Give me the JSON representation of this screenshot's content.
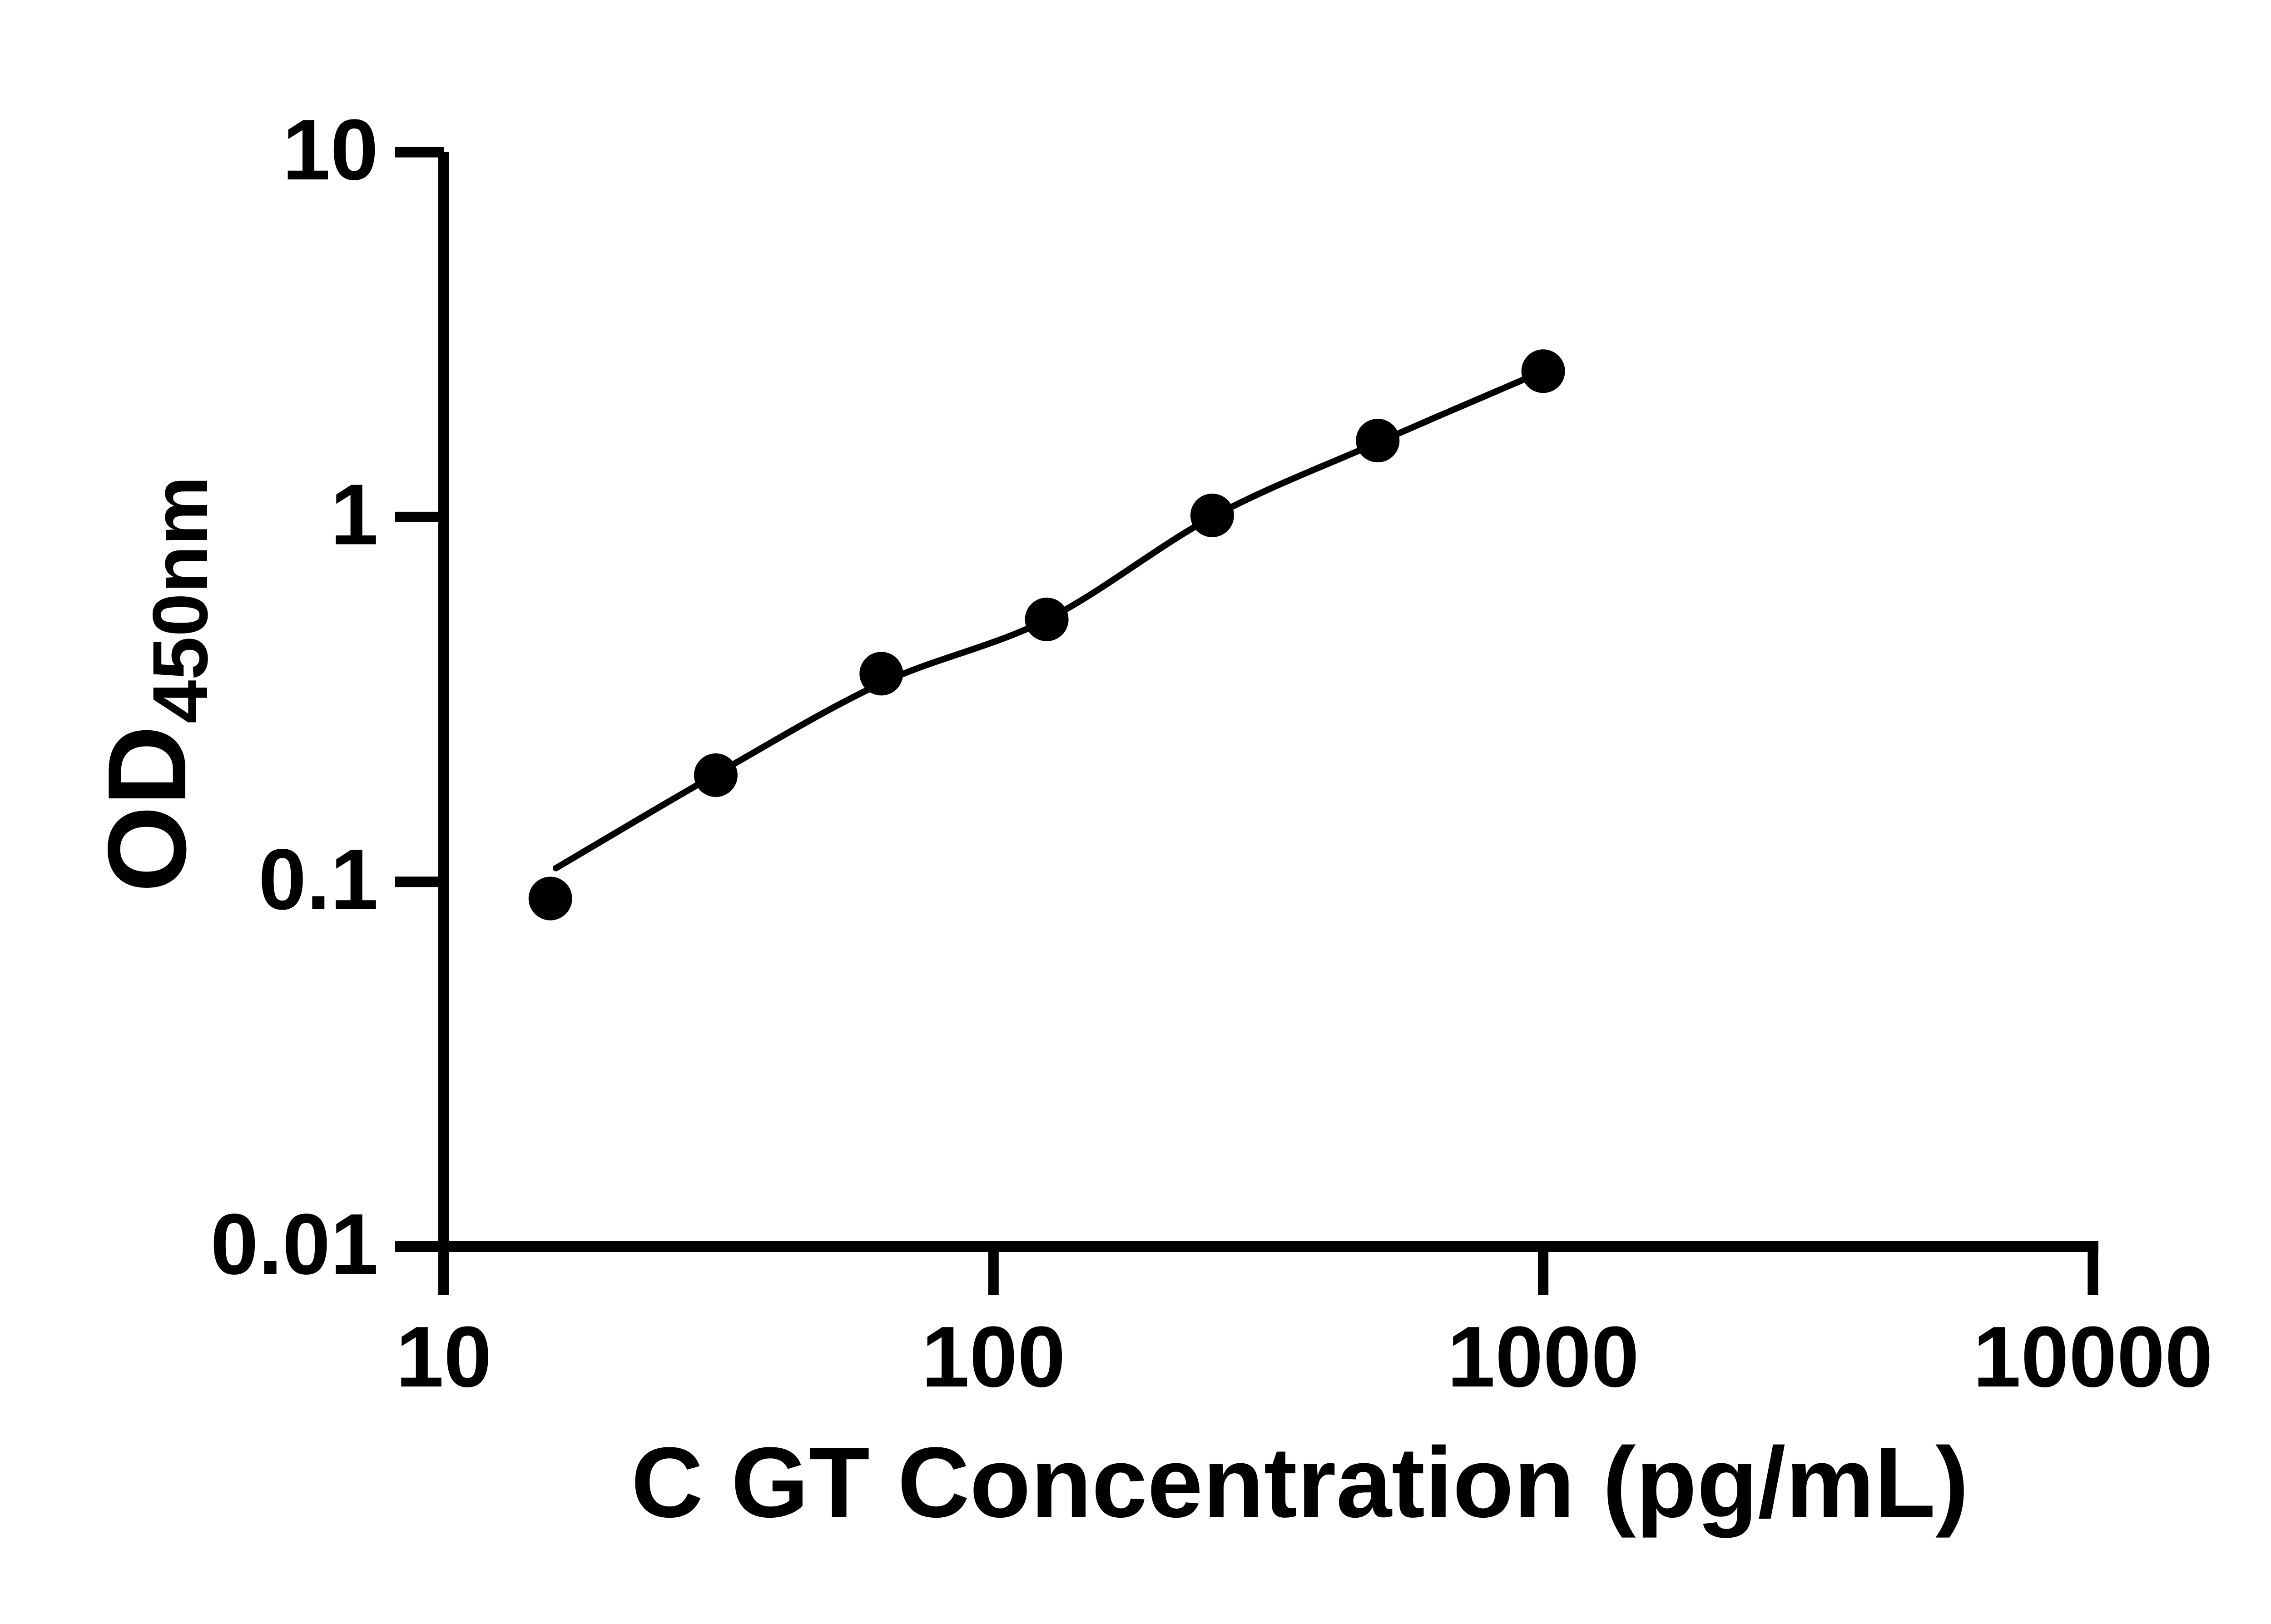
{
  "chart_data": {
    "type": "scatter",
    "title": "",
    "xlabel": "C GT Concentration (pg/mL)",
    "ylabel_main": "OD",
    "ylabel_sub": "450nm",
    "x_scale": "log",
    "y_scale": "log",
    "xlim": [
      10,
      10000
    ],
    "ylim": [
      0.01,
      10
    ],
    "grid": false,
    "legend": null,
    "colors": {
      "foreground": "#000000",
      "background": "#ffffff"
    },
    "x_ticks": [
      {
        "value": 10,
        "label": "10"
      },
      {
        "value": 100,
        "label": "100"
      },
      {
        "value": 1000,
        "label": "1000"
      },
      {
        "value": 10000,
        "label": "10000"
      }
    ],
    "y_ticks": [
      {
        "value": 10,
        "label": "10"
      },
      {
        "value": 1,
        "label": "1"
      },
      {
        "value": 0.1,
        "label": "0.1"
      },
      {
        "value": 0.01,
        "label": "0.01"
      }
    ],
    "series": [
      {
        "name": "standard-curve-points",
        "marker": "circle",
        "color": "#000000",
        "points": [
          {
            "x": 15.63,
            "y": 0.09
          },
          {
            "x": 31.25,
            "y": 0.196
          },
          {
            "x": 62.5,
            "y": 0.372
          },
          {
            "x": 125,
            "y": 0.524
          },
          {
            "x": 250,
            "y": 1.01
          },
          {
            "x": 500,
            "y": 1.62
          },
          {
            "x": 1000,
            "y": 2.51
          }
        ]
      }
    ],
    "fit_curve": {
      "name": "4pl-fit-line",
      "color": "#000000",
      "points": [
        {
          "x": 16.0,
          "y": 0.109
        },
        {
          "x": 31.25,
          "y": 0.197
        },
        {
          "x": 62.5,
          "y": 0.35
        },
        {
          "x": 125,
          "y": 0.523
        },
        {
          "x": 250,
          "y": 1.0
        },
        {
          "x": 500,
          "y": 1.6
        },
        {
          "x": 1000,
          "y": 2.51
        }
      ]
    }
  }
}
